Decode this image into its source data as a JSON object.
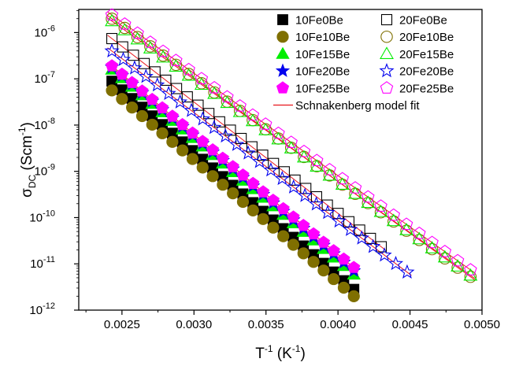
{
  "chart_data": {
    "type": "scatter",
    "xlabel": "T-1 (K-1)",
    "xlabel_parts": {
      "base": "T",
      "sup": "-1",
      "unit_open": " (K",
      "unit_sup": "-1",
      "unit_close": ")"
    },
    "ylabel": "σDC (Scm-1)",
    "ylabel_parts": {
      "sym": "σ",
      "sub": "DC",
      "unit_open": " (Scm",
      "unit_sup": "-1",
      "unit_close": ")"
    },
    "xlim": [
      0.0022,
      0.005
    ],
    "ylim_log10": [
      -12,
      -5.5
    ],
    "yscale": "log",
    "x_ticks": [
      "0.0025",
      "0.0030",
      "0.0035",
      "0.0040",
      "0.0045",
      "0.0050"
    ],
    "x_tick_values": [
      0.0025,
      0.003,
      0.0035,
      0.004,
      0.0045,
      0.005
    ],
    "y_ticks": [
      {
        "base": "10",
        "exp": "-12",
        "log": -12
      },
      {
        "base": "10",
        "exp": "-11",
        "log": -11
      },
      {
        "base": "10",
        "exp": "-10",
        "log": -10
      },
      {
        "base": "10",
        "exp": "-9",
        "log": -9
      },
      {
        "base": "10",
        "exp": "-8",
        "log": -8
      },
      {
        "base": "10",
        "exp": "-7",
        "log": -7
      },
      {
        "base": "10",
        "exp": "-6",
        "log": -6
      }
    ],
    "legend_position": "top-right",
    "fit_label": "Schnakenberg model fit",
    "fit_color": "#e8151b",
    "series": [
      {
        "name": "10Fe0Be",
        "marker": "square",
        "fill": true,
        "color": "#000000",
        "x_start": 0.00243,
        "x_end": 0.00411,
        "n": 25,
        "log_start": -7.05,
        "log_end": -11.55
      },
      {
        "name": "10Fe10Be",
        "marker": "circle",
        "fill": true,
        "color": "#7f6f00",
        "x_start": 0.00243,
        "x_end": 0.00411,
        "n": 25,
        "log_start": -7.25,
        "log_end": -11.7
      },
      {
        "name": "10Fe15Be",
        "marker": "triangle",
        "fill": true,
        "color": "#00ee00",
        "x_start": 0.00243,
        "x_end": 0.00411,
        "n": 25,
        "log_start": -6.8,
        "log_end": -11.23
      },
      {
        "name": "10Fe20Be",
        "marker": "star",
        "fill": true,
        "color": "#0000ee",
        "x_start": 0.00243,
        "x_end": 0.00411,
        "n": 25,
        "log_start": -6.75,
        "log_end": -11.15
      },
      {
        "name": "10Fe25Be",
        "marker": "pentagon",
        "fill": true,
        "color": "#ff00ff",
        "x_start": 0.00243,
        "x_end": 0.00411,
        "n": 25,
        "log_start": -6.72,
        "log_end": -11.08
      },
      {
        "name": "20Fe0Be",
        "marker": "square",
        "fill": false,
        "color": "#000000",
        "x_start": 0.00243,
        "x_end": 0.0043,
        "n": 26,
        "log_start": -6.13,
        "log_end": -10.63
      },
      {
        "name": "20Fe10Be",
        "marker": "circle",
        "fill": false,
        "color": "#7f6f00",
        "x_start": 0.00243,
        "x_end": 0.00492,
        "n": 29,
        "log_start": -5.7,
        "log_end": -11.28
      },
      {
        "name": "20Fe15Be",
        "marker": "triangle",
        "fill": false,
        "color": "#00ee00",
        "x_start": 0.00243,
        "x_end": 0.00492,
        "n": 29,
        "log_start": -5.75,
        "log_end": -11.25
      },
      {
        "name": "20Fe20Be",
        "marker": "star",
        "fill": false,
        "color": "#0000ee",
        "x_start": 0.00243,
        "x_end": 0.00448,
        "n": 27,
        "log_start": -6.4,
        "log_end": -11.18
      },
      {
        "name": "20Fe25Be",
        "marker": "pentagon",
        "fill": false,
        "color": "#ff00ff",
        "x_start": 0.00243,
        "x_end": 0.00492,
        "n": 29,
        "log_start": -5.62,
        "log_end": -11.13
      }
    ]
  }
}
